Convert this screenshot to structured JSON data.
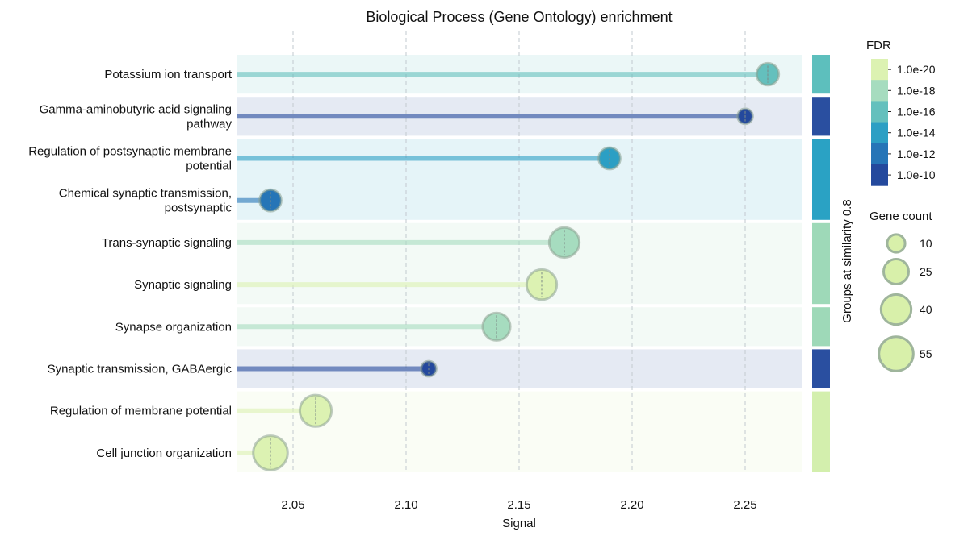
{
  "chart_data": {
    "type": "lollipop",
    "title": "Biological Process (Gene Ontology) enrichment",
    "xlabel": "Signal",
    "ylabel": "",
    "xlim": [
      2.025,
      2.275
    ],
    "xticks": [
      2.05,
      2.1,
      2.15,
      2.2,
      2.25
    ],
    "xtick_labels": [
      "2.05",
      "2.10",
      "2.15",
      "2.20",
      "2.25"
    ],
    "categories": [
      {
        "label": [
          "Potassium ion transport"
        ],
        "signal": 2.26,
        "fdr_exp": -17,
        "gene_count": 18,
        "group": 1
      },
      {
        "label": [
          "Gamma-aminobutyric acid signaling",
          "pathway"
        ],
        "signal": 2.25,
        "fdr_exp": -10,
        "gene_count": 6,
        "group": 2
      },
      {
        "label": [
          "Regulation of postsynaptic membrane",
          "potential"
        ],
        "signal": 2.19,
        "fdr_exp": -14,
        "gene_count": 17,
        "group": 3
      },
      {
        "label": [
          "Chemical synaptic transmission,",
          "postsynaptic"
        ],
        "signal": 2.04,
        "fdr_exp": -13,
        "gene_count": 17,
        "group": 3
      },
      {
        "label": [
          "Trans-synaptic signaling"
        ],
        "signal": 2.17,
        "fdr_exp": -19,
        "gene_count": 40,
        "group": 4
      },
      {
        "label": [
          "Synaptic signaling"
        ],
        "signal": 2.16,
        "fdr_exp": -21,
        "gene_count": 40,
        "group": 4
      },
      {
        "label": [
          "Synapse organization"
        ],
        "signal": 2.14,
        "fdr_exp": -19,
        "gene_count": 32,
        "group": 5
      },
      {
        "label": [
          "Synaptic transmission, GABAergic"
        ],
        "signal": 2.11,
        "fdr_exp": -10,
        "gene_count": 6,
        "group": 6
      },
      {
        "label": [
          "Regulation of membrane potential"
        ],
        "signal": 2.06,
        "fdr_exp": -21,
        "gene_count": 45,
        "group": 7
      },
      {
        "label": [
          "Cell junction organization"
        ],
        "signal": 2.04,
        "fdr_exp": -21,
        "gene_count": 55,
        "group": 7
      }
    ],
    "groups": [
      {
        "rows": [
          0
        ],
        "color": "#5dbfbd"
      },
      {
        "rows": [
          1
        ],
        "color": "#2a4fa0"
      },
      {
        "rows": [
          2,
          3
        ],
        "color": "#2aa2c4"
      },
      {
        "rows": [
          4,
          5
        ],
        "color": "#9ed9b8"
      },
      {
        "rows": [
          6
        ],
        "color": "#9ed9b8"
      },
      {
        "rows": [
          7
        ],
        "color": "#2a4fa0"
      },
      {
        "rows": [
          8,
          9
        ],
        "color": "#d3efad"
      }
    ],
    "group_axis_label": "Groups at similarity 0.8",
    "fdr_legend": {
      "title": "FDR",
      "ticks": [
        "1.0e-20",
        "1.0e-18",
        "1.0e-16",
        "1.0e-14",
        "1.0e-12",
        "1.0e-10"
      ],
      "colors": [
        "#dcf2b2",
        "#a6dcbf",
        "#64c0bd",
        "#2c9fc4",
        "#2675b7",
        "#24499d"
      ]
    },
    "size_legend": {
      "title": "Gene count",
      "values": [
        10,
        25,
        40,
        55
      ],
      "labels": [
        "10",
        "25",
        "40",
        "55"
      ]
    }
  }
}
